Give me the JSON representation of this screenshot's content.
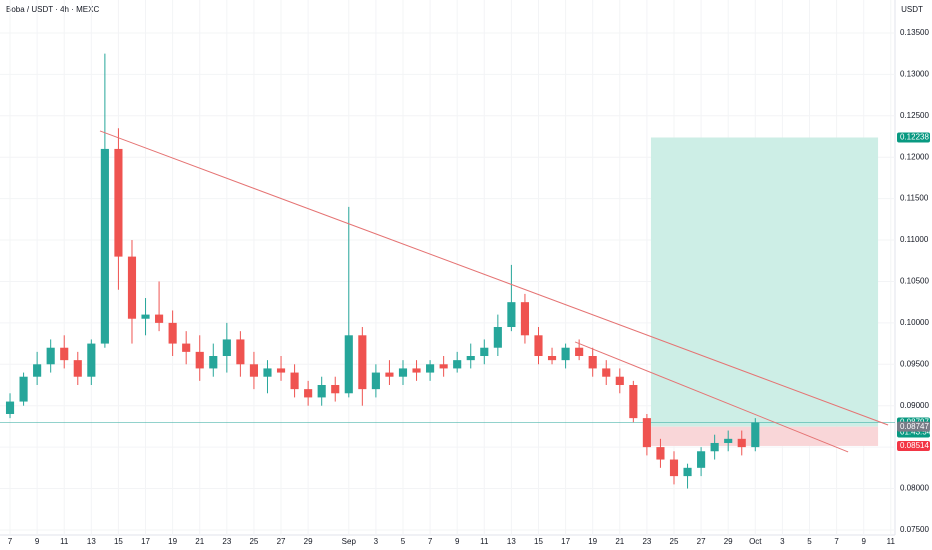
{
  "chart_data": {
    "type": "candlestick",
    "title": "Boba / USDT · 4h · MEXC",
    "currency": "USDT",
    "up_color": "#26a69a",
    "down_color": "#ef5350",
    "x": [
      0,
      1,
      2,
      3,
      4,
      5,
      6,
      7,
      8,
      9,
      10,
      11,
      12,
      13,
      14,
      15,
      16,
      17,
      18,
      19,
      20,
      21,
      22,
      23,
      24,
      25,
      26,
      27,
      28,
      29,
      30,
      31,
      32,
      33,
      34,
      35,
      36,
      37,
      38,
      39,
      40,
      41,
      42,
      43,
      44,
      45,
      46,
      47,
      48,
      49,
      50,
      51,
      52,
      53,
      54,
      55
    ],
    "open": [
      0.089,
      0.0905,
      0.0935,
      0.095,
      0.097,
      0.0955,
      0.0935,
      0.0975,
      0.121,
      0.108,
      0.1005,
      0.101,
      0.1,
      0.0975,
      0.0965,
      0.0945,
      0.096,
      0.098,
      0.095,
      0.0935,
      0.0945,
      0.094,
      0.092,
      0.091,
      0.0925,
      0.0915,
      0.0985,
      0.092,
      0.094,
      0.0935,
      0.0945,
      0.094,
      0.095,
      0.0945,
      0.0955,
      0.096,
      0.097,
      0.0995,
      0.1025,
      0.0985,
      0.096,
      0.0955,
      0.097,
      0.096,
      0.0945,
      0.0935,
      0.0925,
      0.0885,
      0.085,
      0.0835,
      0.0815,
      0.0825,
      0.0845,
      0.0855,
      0.086,
      0.085
    ],
    "high": [
      0.0915,
      0.094,
      0.0965,
      0.098,
      0.0985,
      0.0965,
      0.098,
      0.1325,
      0.1235,
      0.11,
      0.103,
      0.105,
      0.1015,
      0.099,
      0.0985,
      0.0975,
      0.1,
      0.099,
      0.0965,
      0.0955,
      0.096,
      0.095,
      0.093,
      0.0935,
      0.0935,
      0.114,
      0.0995,
      0.095,
      0.0955,
      0.0955,
      0.0955,
      0.0955,
      0.096,
      0.0965,
      0.0975,
      0.098,
      0.101,
      0.107,
      0.1035,
      0.0995,
      0.097,
      0.0975,
      0.098,
      0.097,
      0.0955,
      0.0945,
      0.093,
      0.089,
      0.086,
      0.0845,
      0.083,
      0.085,
      0.0865,
      0.087,
      0.087,
      0.0885
    ],
    "low": [
      0.0885,
      0.09,
      0.0925,
      0.094,
      0.0945,
      0.0925,
      0.0925,
      0.097,
      0.104,
      0.0975,
      0.0985,
      0.099,
      0.096,
      0.095,
      0.093,
      0.0935,
      0.094,
      0.0935,
      0.092,
      0.0915,
      0.093,
      0.091,
      0.09,
      0.09,
      0.0905,
      0.091,
      0.09,
      0.091,
      0.0925,
      0.0925,
      0.093,
      0.093,
      0.0935,
      0.094,
      0.0945,
      0.095,
      0.096,
      0.099,
      0.0975,
      0.095,
      0.095,
      0.0945,
      0.0955,
      0.0935,
      0.0925,
      0.0915,
      0.088,
      0.084,
      0.0825,
      0.0805,
      0.08,
      0.0815,
      0.0835,
      0.0845,
      0.084,
      0.0845
    ],
    "close": [
      0.0905,
      0.0935,
      0.095,
      0.097,
      0.0955,
      0.0935,
      0.0975,
      0.121,
      0.108,
      0.1005,
      0.101,
      0.1,
      0.0975,
      0.0965,
      0.0945,
      0.096,
      0.098,
      0.095,
      0.0935,
      0.0945,
      0.094,
      0.092,
      0.091,
      0.0925,
      0.0915,
      0.0985,
      0.092,
      0.094,
      0.0935,
      0.0945,
      0.094,
      0.095,
      0.0945,
      0.0955,
      0.096,
      0.097,
      0.0995,
      0.1025,
      0.0985,
      0.096,
      0.0955,
      0.097,
      0.096,
      0.0945,
      0.0935,
      0.0925,
      0.0885,
      0.085,
      0.0835,
      0.0815,
      0.0825,
      0.0845,
      0.0855,
      0.086,
      0.085,
      0.08797
    ],
    "countdown": "01:43:54",
    "xlim": [
      -0.74,
      65.31
    ],
    "ylim": [
      0.07439,
      0.13898
    ],
    "xticks": [
      {
        "value": 0,
        "label": "7"
      },
      {
        "value": 2,
        "label": "9"
      },
      {
        "value": 4,
        "label": "11"
      },
      {
        "value": 6,
        "label": "13"
      },
      {
        "value": 8,
        "label": "15"
      },
      {
        "value": 10,
        "label": "17"
      },
      {
        "value": 12,
        "label": "19"
      },
      {
        "value": 14,
        "label": "21"
      },
      {
        "value": 16,
        "label": "23"
      },
      {
        "value": 18,
        "label": "25"
      },
      {
        "value": 20,
        "label": "27"
      },
      {
        "value": 22,
        "label": "29"
      },
      {
        "value": 25,
        "label": "Sep"
      },
      {
        "value": 27,
        "label": "3"
      },
      {
        "value": 29,
        "label": "5"
      },
      {
        "value": 31,
        "label": "7"
      },
      {
        "value": 33,
        "label": "9"
      },
      {
        "value": 35,
        "label": "11"
      },
      {
        "value": 37,
        "label": "13"
      },
      {
        "value": 39,
        "label": "15"
      },
      {
        "value": 41,
        "label": "17"
      },
      {
        "value": 43,
        "label": "19"
      },
      {
        "value": 45,
        "label": "21"
      },
      {
        "value": 47,
        "label": "23"
      },
      {
        "value": 49,
        "label": "25"
      },
      {
        "value": 51,
        "label": "27"
      },
      {
        "value": 53,
        "label": "29"
      },
      {
        "value": 55,
        "label": "Oct"
      },
      {
        "value": 57,
        "label": "3"
      },
      {
        "value": 59,
        "label": "5"
      },
      {
        "value": 61,
        "label": "7"
      },
      {
        "value": 63,
        "label": "9"
      },
      {
        "value": 65,
        "label": "11"
      }
    ],
    "yticks": [
      {
        "value": 0.135,
        "label": "0.13500"
      },
      {
        "value": 0.13,
        "label": "0.13000"
      },
      {
        "value": 0.125,
        "label": "0.12500"
      },
      {
        "value": 0.12,
        "label": "0.12000"
      },
      {
        "value": 0.115,
        "label": "0.11500"
      },
      {
        "value": 0.11,
        "label": "0.11000"
      },
      {
        "value": 0.105,
        "label": "0.10500"
      },
      {
        "value": 0.1,
        "label": "0.10000"
      },
      {
        "value": 0.095,
        "label": "0.09500"
      },
      {
        "value": 0.09,
        "label": "0.09000"
      },
      {
        "value": 0.085,
        "label": "0.08500"
      },
      {
        "value": 0.08,
        "label": "0.08000"
      },
      {
        "value": 0.075,
        "label": "0.07500"
      }
    ],
    "trendlines": [
      {
        "color": "#e57373",
        "x": [
          6.64,
          64.8
        ],
        "y": [
          0.12317,
          0.08767
        ]
      },
      {
        "color": "#e57373",
        "x": [
          41.7,
          61.85
        ],
        "y": [
          0.0977,
          0.08442
        ]
      }
    ],
    "position": {
      "x": [
        47.3,
        64.06
      ],
      "target": 0.12238,
      "entry": 0.08747,
      "stop": 0.08514,
      "profit_color": "#cdeee6",
      "loss_color": "#f9d6d8"
    }
  }
}
